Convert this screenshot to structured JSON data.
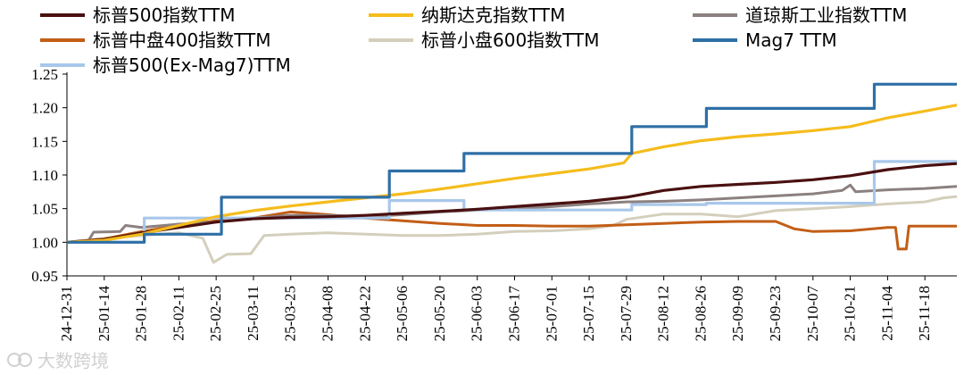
{
  "chart_data": {
    "type": "line",
    "title": "",
    "xlabel": "",
    "ylabel": "",
    "ylim": [
      0.95,
      1.25
    ],
    "yticks": [
      "0.95",
      "1.00",
      "1.05",
      "1.10",
      "1.15",
      "1.20",
      "1.25"
    ],
    "xrange": [
      "2024-12-31",
      "2025-11-30"
    ],
    "xticks": [
      "24-12-31",
      "25-01-14",
      "25-01-28",
      "25-02-11",
      "25-02-25",
      "25-03-11",
      "25-03-25",
      "25-04-08",
      "25-04-22",
      "25-05-06",
      "25-05-20",
      "25-06-03",
      "25-06-17",
      "25-07-01",
      "25-07-15",
      "25-07-29",
      "25-08-12",
      "25-08-26",
      "25-09-09",
      "25-09-23",
      "25-10-07",
      "25-10-21",
      "25-11-04",
      "25-11-18"
    ],
    "legend_position": "top",
    "grid": false,
    "series": [
      {
        "name": "标普500指数TTM",
        "color": "#4a1010",
        "width": 3.2,
        "step": false,
        "points": [
          [
            "2024-12-31",
            1.0
          ],
          [
            "2025-01-14",
            1.004
          ],
          [
            "2025-01-28",
            1.014
          ],
          [
            "2025-02-11",
            1.022
          ],
          [
            "2025-02-25",
            1.03
          ],
          [
            "2025-03-11",
            1.035
          ],
          [
            "2025-03-25",
            1.037
          ],
          [
            "2025-04-08",
            1.038
          ],
          [
            "2025-04-22",
            1.04
          ],
          [
            "2025-05-06",
            1.043
          ],
          [
            "2025-05-20",
            1.046
          ],
          [
            "2025-06-03",
            1.049
          ],
          [
            "2025-06-17",
            1.053
          ],
          [
            "2025-07-01",
            1.057
          ],
          [
            "2025-07-15",
            1.061
          ],
          [
            "2025-07-29",
            1.067
          ],
          [
            "2025-08-12",
            1.077
          ],
          [
            "2025-08-26",
            1.083
          ],
          [
            "2025-09-09",
            1.086
          ],
          [
            "2025-09-23",
            1.089
          ],
          [
            "2025-10-07",
            1.093
          ],
          [
            "2025-10-21",
            1.099
          ],
          [
            "2025-11-04",
            1.108
          ],
          [
            "2025-11-18",
            1.114
          ],
          [
            "2025-11-30",
            1.117
          ]
        ]
      },
      {
        "name": "纳斯达克指数TTM",
        "color": "#f5bc1c",
        "width": 3.2,
        "step": false,
        "points": [
          [
            "2024-12-31",
            1.0
          ],
          [
            "2025-01-14",
            1.003
          ],
          [
            "2025-01-28",
            1.012
          ],
          [
            "2025-02-11",
            1.025
          ],
          [
            "2025-02-25",
            1.038
          ],
          [
            "2025-03-11",
            1.047
          ],
          [
            "2025-03-25",
            1.054
          ],
          [
            "2025-04-08",
            1.06
          ],
          [
            "2025-04-22",
            1.066
          ],
          [
            "2025-05-06",
            1.072
          ],
          [
            "2025-05-20",
            1.079
          ],
          [
            "2025-06-03",
            1.087
          ],
          [
            "2025-06-17",
            1.095
          ],
          [
            "2025-07-01",
            1.102
          ],
          [
            "2025-07-15",
            1.109
          ],
          [
            "2025-07-28",
            1.118
          ],
          [
            "2025-07-31",
            1.132
          ],
          [
            "2025-08-12",
            1.142
          ],
          [
            "2025-08-26",
            1.151
          ],
          [
            "2025-09-09",
            1.157
          ],
          [
            "2025-09-23",
            1.161
          ],
          [
            "2025-10-07",
            1.166
          ],
          [
            "2025-10-21",
            1.172
          ],
          [
            "2025-11-04",
            1.185
          ],
          [
            "2025-11-18",
            1.195
          ],
          [
            "2025-11-30",
            1.204
          ]
        ]
      },
      {
        "name": "道琼斯工业指数TTM",
        "color": "#8c8080",
        "width": 3.0,
        "step": false,
        "points": [
          [
            "2024-12-31",
            1.0
          ],
          [
            "2025-01-08",
            1.002
          ],
          [
            "2025-01-10",
            1.015
          ],
          [
            "2025-01-20",
            1.016
          ],
          [
            "2025-01-22",
            1.025
          ],
          [
            "2025-01-28",
            1.022
          ],
          [
            "2025-02-11",
            1.027
          ],
          [
            "2025-02-25",
            1.03
          ],
          [
            "2025-03-11",
            1.036
          ],
          [
            "2025-03-25",
            1.04
          ],
          [
            "2025-04-08",
            1.04
          ],
          [
            "2025-04-22",
            1.038
          ],
          [
            "2025-05-06",
            1.041
          ],
          [
            "2025-05-20",
            1.045
          ],
          [
            "2025-06-03",
            1.048
          ],
          [
            "2025-06-17",
            1.05
          ],
          [
            "2025-07-01",
            1.053
          ],
          [
            "2025-07-15",
            1.057
          ],
          [
            "2025-07-29",
            1.06
          ],
          [
            "2025-08-12",
            1.061
          ],
          [
            "2025-08-26",
            1.063
          ],
          [
            "2025-09-09",
            1.066
          ],
          [
            "2025-09-23",
            1.069
          ],
          [
            "2025-10-07",
            1.072
          ],
          [
            "2025-10-18",
            1.077
          ],
          [
            "2025-10-21",
            1.085
          ],
          [
            "2025-10-23",
            1.075
          ],
          [
            "2025-11-04",
            1.078
          ],
          [
            "2025-11-18",
            1.08
          ],
          [
            "2025-11-30",
            1.083
          ]
        ]
      },
      {
        "name": "标普中盘400指数TTM",
        "color": "#c25e16",
        "width": 3.0,
        "step": false,
        "points": [
          [
            "2024-12-31",
            1.0
          ],
          [
            "2025-01-14",
            1.005
          ],
          [
            "2025-01-28",
            1.016
          ],
          [
            "2025-02-11",
            1.025
          ],
          [
            "2025-02-25",
            1.032
          ],
          [
            "2025-03-11",
            1.036
          ],
          [
            "2025-03-25",
            1.045
          ],
          [
            "2025-04-08",
            1.041
          ],
          [
            "2025-04-22",
            1.036
          ],
          [
            "2025-05-06",
            1.032
          ],
          [
            "2025-05-20",
            1.028
          ],
          [
            "2025-06-03",
            1.025
          ],
          [
            "2025-06-17",
            1.025
          ],
          [
            "2025-07-01",
            1.024
          ],
          [
            "2025-07-15",
            1.024
          ],
          [
            "2025-07-29",
            1.026
          ],
          [
            "2025-08-12",
            1.028
          ],
          [
            "2025-08-26",
            1.03
          ],
          [
            "2025-09-09",
            1.031
          ],
          [
            "2025-09-23",
            1.031
          ],
          [
            "2025-09-30",
            1.02
          ],
          [
            "2025-10-07",
            1.016
          ],
          [
            "2025-10-21",
            1.017
          ],
          [
            "2025-11-04",
            1.022
          ],
          [
            "2025-11-07",
            1.022
          ],
          [
            "2025-11-08",
            0.99
          ],
          [
            "2025-11-11",
            0.99
          ],
          [
            "2025-11-12",
            1.024
          ],
          [
            "2025-11-30",
            1.024
          ]
        ]
      },
      {
        "name": "标普小盘600指数TTM",
        "color": "#d4cfbc",
        "width": 3.0,
        "step": false,
        "points": [
          [
            "2024-12-31",
            1.0
          ],
          [
            "2025-01-14",
            1.006
          ],
          [
            "2025-01-28",
            1.01
          ],
          [
            "2025-02-11",
            1.014
          ],
          [
            "2025-02-20",
            1.006
          ],
          [
            "2025-02-24",
            0.97
          ],
          [
            "2025-03-01",
            0.982
          ],
          [
            "2025-03-10",
            0.983
          ],
          [
            "2025-03-15",
            1.01
          ],
          [
            "2025-03-25",
            1.012
          ],
          [
            "2025-04-08",
            1.014
          ],
          [
            "2025-04-22",
            1.012
          ],
          [
            "2025-05-06",
            1.01
          ],
          [
            "2025-05-20",
            1.01
          ],
          [
            "2025-06-03",
            1.012
          ],
          [
            "2025-06-17",
            1.016
          ],
          [
            "2025-07-01",
            1.017
          ],
          [
            "2025-07-15",
            1.02
          ],
          [
            "2025-07-24",
            1.025
          ],
          [
            "2025-07-29",
            1.034
          ],
          [
            "2025-08-12",
            1.042
          ],
          [
            "2025-08-26",
            1.042
          ],
          [
            "2025-09-09",
            1.038
          ],
          [
            "2025-09-23",
            1.047
          ],
          [
            "2025-10-07",
            1.05
          ],
          [
            "2025-10-21",
            1.053
          ],
          [
            "2025-11-04",
            1.057
          ],
          [
            "2025-11-18",
            1.06
          ],
          [
            "2025-11-25",
            1.066
          ],
          [
            "2025-11-30",
            1.068
          ]
        ]
      },
      {
        "name": "Mag7 TTM",
        "color": "#2e6fa6",
        "width": 3.2,
        "step": true,
        "points": [
          [
            "2024-12-31",
            1.0
          ],
          [
            "2025-01-29",
            1.012
          ],
          [
            "2025-02-27",
            1.067
          ],
          [
            "2025-05-01",
            1.106
          ],
          [
            "2025-05-29",
            1.132
          ],
          [
            "2025-07-31",
            1.172
          ],
          [
            "2025-08-28",
            1.199
          ],
          [
            "2025-10-30",
            1.235
          ],
          [
            "2025-11-30",
            1.235
          ]
        ]
      },
      {
        "name": "标普500(Ex-Mag7)TTM",
        "color": "#a8c8ea",
        "width": 3.2,
        "step": true,
        "points": [
          [
            "2024-12-31",
            1.0
          ],
          [
            "2025-01-29",
            1.036
          ],
          [
            "2025-05-01",
            1.062
          ],
          [
            "2025-05-29",
            1.048
          ],
          [
            "2025-07-31",
            1.056
          ],
          [
            "2025-08-28",
            1.058
          ],
          [
            "2025-10-30",
            1.12
          ],
          [
            "2025-11-30",
            1.12
          ]
        ]
      }
    ]
  },
  "watermark": "大数跨境"
}
